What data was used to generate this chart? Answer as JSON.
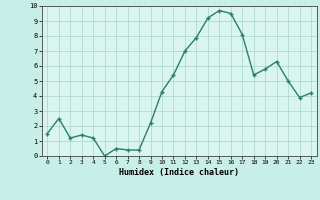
{
  "x": [
    0,
    1,
    2,
    3,
    4,
    5,
    6,
    7,
    8,
    9,
    10,
    11,
    12,
    13,
    14,
    15,
    16,
    17,
    18,
    19,
    20,
    21,
    22,
    23
  ],
  "y": [
    1.5,
    2.5,
    1.2,
    1.4,
    1.2,
    0.0,
    0.5,
    0.4,
    0.4,
    2.2,
    4.3,
    5.4,
    7.0,
    7.9,
    9.2,
    9.7,
    9.5,
    8.1,
    5.4,
    5.8,
    6.3,
    5.0,
    3.9,
    4.2
  ],
  "xlabel": "Humidex (Indice chaleur)",
  "xlim_min": -0.5,
  "xlim_max": 23.5,
  "ylim_min": 0,
  "ylim_max": 10,
  "xticks": [
    0,
    1,
    2,
    3,
    4,
    5,
    6,
    7,
    8,
    9,
    10,
    11,
    12,
    13,
    14,
    15,
    16,
    17,
    18,
    19,
    20,
    21,
    22,
    23
  ],
  "yticks": [
    0,
    1,
    2,
    3,
    4,
    5,
    6,
    7,
    8,
    9,
    10
  ],
  "line_color": "#2d7d6e",
  "bg_color": "#c8eee8",
  "grid_color": "#aad4cc",
  "plot_bg": "#d8f5f0"
}
